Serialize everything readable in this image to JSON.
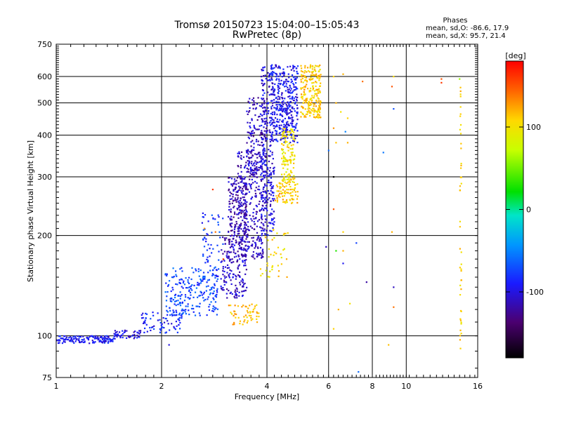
{
  "chart_data": {
    "type": "scatter",
    "title": "Tromsø 20150723 15:04:00–15:05:43",
    "subtitle": "RwPretec (8p)",
    "xlabel": "Frequency [MHz]",
    "ylabel": "Stationary phase Virtual Height [km]",
    "x_scale": "log",
    "y_scale": "log",
    "xlim": [
      1,
      16
    ],
    "ylim": [
      75,
      750
    ],
    "x_ticks": [
      {
        "value": 1,
        "label": "1"
      },
      {
        "value": 2,
        "label": "2"
      },
      {
        "value": 4,
        "label": "4"
      },
      {
        "value": 6,
        "label": "6"
      },
      {
        "value": 8,
        "label": "8"
      },
      {
        "value": 10,
        "label": "10"
      },
      {
        "value": 16,
        "label": "16"
      }
    ],
    "y_ticks": [
      {
        "value": 75,
        "label": "75"
      },
      {
        "value": 100,
        "label": "100"
      },
      {
        "value": 200,
        "label": "200"
      },
      {
        "value": 300,
        "label": "300"
      },
      {
        "value": 400,
        "label": "400"
      },
      {
        "value": 500,
        "label": "500"
      },
      {
        "value": 600,
        "label": "600"
      },
      {
        "value": 750,
        "label": "750"
      }
    ],
    "grid": true,
    "phase_legend": {
      "heading": "Phases",
      "line_o": "mean, sd,O: -86.6, 17.9",
      "line_x": "mean, sd,X:  95.7, 21.4"
    },
    "colorbar": {
      "label": "[deg]",
      "range": [
        -180,
        180
      ],
      "ticks": [
        {
          "value": 100,
          "label": "100"
        },
        {
          "value": 0,
          "label": "0"
        },
        {
          "value": -100,
          "label": "-100"
        }
      ]
    },
    "clusters": [
      {
        "x": [
          1.0,
          1.45
        ],
        "y": [
          95,
          100
        ],
        "phase": -92,
        "count": 140
      },
      {
        "x": [
          1.45,
          1.75
        ],
        "y": [
          98,
          104
        ],
        "phase": -100,
        "count": 50
      },
      {
        "x": [
          1.75,
          2.3
        ],
        "y": [
          102,
          118
        ],
        "phase": -88,
        "count": 70
      },
      {
        "x": [
          2.05,
          2.9
        ],
        "y": [
          115,
          160
        ],
        "phase": -72,
        "count": 230
      },
      {
        "x": [
          2.6,
          3.0
        ],
        "y": [
          150,
          235
        ],
        "phase": -80,
        "count": 60
      },
      {
        "x": [
          2.95,
          3.5
        ],
        "y": [
          130,
          200
        ],
        "phase": -108,
        "count": 180
      },
      {
        "x": [
          3.1,
          3.5
        ],
        "y": [
          190,
          300
        ],
        "phase": -118,
        "count": 190
      },
      {
        "x": [
          3.3,
          3.9
        ],
        "y": [
          170,
          360
        ],
        "phase": -110,
        "count": 300
      },
      {
        "x": [
          3.5,
          4.0
        ],
        "y": [
          300,
          520
        ],
        "phase": -112,
        "count": 170
      },
      {
        "x": [
          3.85,
          4.2
        ],
        "y": [
          200,
          650
        ],
        "phase": -100,
        "count": 280
      },
      {
        "x": [
          4.1,
          4.9
        ],
        "y": [
          380,
          650
        ],
        "phase": -95,
        "count": 380
      },
      {
        "x": [
          4.2,
          4.9
        ],
        "y": [
          250,
          290
        ],
        "phase": 110,
        "count": 80
      },
      {
        "x": [
          4.4,
          4.8
        ],
        "y": [
          290,
          420
        ],
        "phase": 100,
        "count": 120
      },
      {
        "x": [
          5.0,
          5.7
        ],
        "y": [
          450,
          650
        ],
        "phase": 112,
        "count": 230
      },
      {
        "x": [
          3.1,
          3.8
        ],
        "y": [
          108,
          125
        ],
        "phase": 115,
        "count": 55
      },
      {
        "x": [
          3.8,
          4.6
        ],
        "y": [
          150,
          210
        ],
        "phase": 105,
        "count": 40
      }
    ],
    "outliers": [
      {
        "x": 6.2,
        "y": 600,
        "phase": 110
      },
      {
        "x": 6.6,
        "y": 610,
        "phase": 120
      },
      {
        "x": 7.5,
        "y": 580,
        "phase": 140
      },
      {
        "x": 9.2,
        "y": 600,
        "phase": 105
      },
      {
        "x": 12.6,
        "y": 590,
        "phase": 150
      },
      {
        "x": 14.2,
        "y": 590,
        "phase": 60
      },
      {
        "x": 12.6,
        "y": 575,
        "phase": 160
      },
      {
        "x": 9.1,
        "y": 560,
        "phase": 150
      },
      {
        "x": 6.3,
        "y": 500,
        "phase": 120
      },
      {
        "x": 6.5,
        "y": 470,
        "phase": 100
      },
      {
        "x": 6.8,
        "y": 450,
        "phase": 110
      },
      {
        "x": 9.2,
        "y": 480,
        "phase": -70
      },
      {
        "x": 6.2,
        "y": 420,
        "phase": 130
      },
      {
        "x": 6.7,
        "y": 410,
        "phase": -50
      },
      {
        "x": 6.3,
        "y": 380,
        "phase": 115
      },
      {
        "x": 6.8,
        "y": 380,
        "phase": 120
      },
      {
        "x": 6.0,
        "y": 360,
        "phase": -60
      },
      {
        "x": 8.6,
        "y": 355,
        "phase": -55
      },
      {
        "x": 6.2,
        "y": 300,
        "phase": -180
      },
      {
        "x": 6.2,
        "y": 240,
        "phase": 150
      },
      {
        "x": 6.6,
        "y": 205,
        "phase": 110
      },
      {
        "x": 9.1,
        "y": 205,
        "phase": 120
      },
      {
        "x": 5.9,
        "y": 185,
        "phase": -110
      },
      {
        "x": 6.3,
        "y": 180,
        "phase": 30
      },
      {
        "x": 6.6,
        "y": 180,
        "phase": 120
      },
      {
        "x": 7.2,
        "y": 190,
        "phase": -75
      },
      {
        "x": 6.6,
        "y": 165,
        "phase": -95
      },
      {
        "x": 7.7,
        "y": 145,
        "phase": -120
      },
      {
        "x": 9.2,
        "y": 140,
        "phase": -110
      },
      {
        "x": 6.4,
        "y": 120,
        "phase": 120
      },
      {
        "x": 6.9,
        "y": 125,
        "phase": 100
      },
      {
        "x": 9.2,
        "y": 122,
        "phase": 140
      },
      {
        "x": 6.2,
        "y": 105,
        "phase": 110
      },
      {
        "x": 8.9,
        "y": 94,
        "phase": 115
      },
      {
        "x": 7.3,
        "y": 78,
        "phase": -60
      },
      {
        "x": 2.1,
        "y": 94,
        "phase": -100
      },
      {
        "x": 2.8,
        "y": 275,
        "phase": 160
      },
      {
        "x": 2.65,
        "y": 210,
        "phase": 130
      },
      {
        "x": 2.85,
        "y": 205,
        "phase": 140
      },
      {
        "x": 3.0,
        "y": 170,
        "phase": 150
      }
    ],
    "column_near_14_3": {
      "x": 14.3,
      "y": [
        90,
        600
      ],
      "phase": 110,
      "count": 45
    }
  }
}
